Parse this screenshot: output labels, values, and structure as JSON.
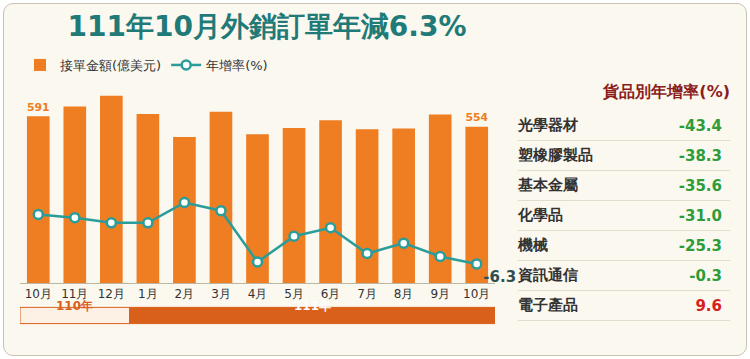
{
  "chart_data": {
    "type": "bar",
    "title": "111年10月外銷訂單年減6.3%",
    "categories": [
      "10月",
      "11月",
      "12月",
      "1月",
      "2月",
      "3月",
      "4月",
      "5月",
      "6月",
      "7月",
      "8月",
      "9月",
      "10月"
    ],
    "series": [
      {
        "name": "接單金額(億美元)",
        "type": "bar",
        "color": "#ef7d22",
        "values": [
          591,
          626,
          664,
          599,
          518,
          607,
          528,
          550,
          577,
          545,
          548,
          598,
          554
        ],
        "value_labels": [
          "591",
          null,
          null,
          null,
          null,
          null,
          null,
          null,
          null,
          null,
          null,
          null,
          "554"
        ]
      },
      {
        "name": "年增率(%)",
        "type": "line",
        "axis": "y2",
        "color": "#2a9d9a",
        "marker": "circle",
        "values": [
          13.7,
          12.4,
          10.3,
          10.3,
          18.5,
          15.2,
          -5.5,
          4.9,
          8.3,
          -2.1,
          2.1,
          -3.3,
          -6.3
        ],
        "value_labels": [
          null,
          null,
          null,
          null,
          null,
          null,
          null,
          null,
          null,
          null,
          null,
          null,
          "-6.3"
        ]
      }
    ],
    "ylim": [
      0,
      720
    ],
    "y2lim": [
      -14,
      68
    ],
    "tick_labels": "x",
    "grid": false,
    "legend": "top left",
    "x_groups": [
      {
        "label": "110年",
        "from": 0,
        "to": 2
      },
      {
        "label": "111年",
        "from": 3,
        "to": 12
      }
    ]
  },
  "side_table": {
    "title": "貨品別年增率(%)",
    "rows": [
      [
        "光學器材",
        -43.4
      ],
      [
        "塑橡膠製品",
        -38.3
      ],
      [
        "基本金屬",
        -35.6
      ],
      [
        "化學品",
        -31.0
      ],
      [
        "機械",
        -25.3
      ],
      [
        "資訊通信",
        -0.3
      ],
      [
        "電子產品",
        9.6
      ]
    ]
  }
}
